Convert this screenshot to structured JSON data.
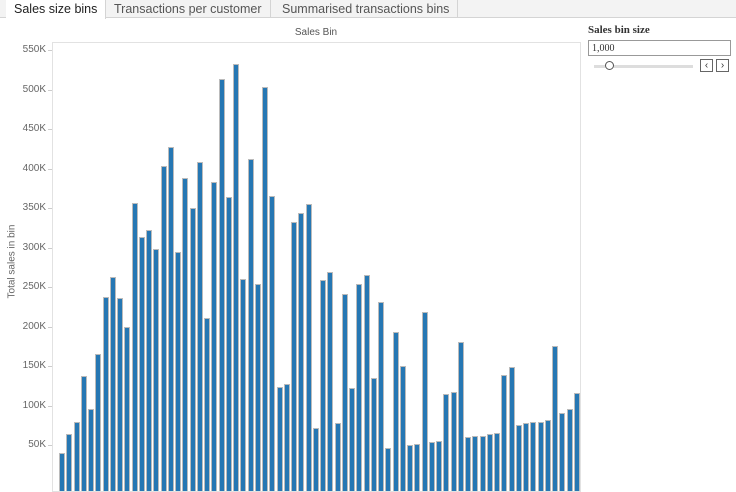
{
  "tabs": [
    {
      "label": "Sales size bins",
      "active": true
    },
    {
      "label": "Transactions per customer"
    },
    {
      "label": "Summarised transactions bins"
    }
  ],
  "parameter": {
    "title": "Sales bin size",
    "value": "1,000",
    "slider_position": 0.15,
    "prev_icon": "chevron-left-icon",
    "next_icon": "chevron-right-icon"
  },
  "chart_data": {
    "type": "bar",
    "title": "Sales Bin",
    "xlabel": "",
    "ylabel": "Total sales in bin",
    "ylim": [
      0,
      560000
    ],
    "yticks": [
      "550K",
      "500K",
      "450K",
      "400K",
      "350K",
      "300K",
      "250K",
      "200K",
      "150K",
      "100K",
      "50K"
    ],
    "color": "#2677b3",
    "values": [
      41000,
      65000,
      80000,
      138000,
      97000,
      167000,
      238000,
      264000,
      237000,
      201000,
      357000,
      315000,
      323000,
      300000,
      405000,
      428000,
      295000,
      389000,
      351000,
      410000,
      212000,
      384000,
      514000,
      365000,
      533000,
      262000,
      413000,
      255000,
      504000,
      366000,
      125000,
      128000,
      333000,
      345000,
      356000,
      73000,
      260000,
      270000,
      79000,
      242000,
      123000,
      255000,
      266000,
      136000,
      232000,
      47000,
      194000,
      151000,
      51000,
      52000,
      219000,
      55000,
      56000,
      116000,
      118000,
      182000,
      62000,
      63000,
      63000,
      65000,
      67000,
      140000,
      150000,
      77000,
      79000,
      80000,
      81000,
      83000,
      176000,
      92000,
      97000,
      117000
    ]
  }
}
